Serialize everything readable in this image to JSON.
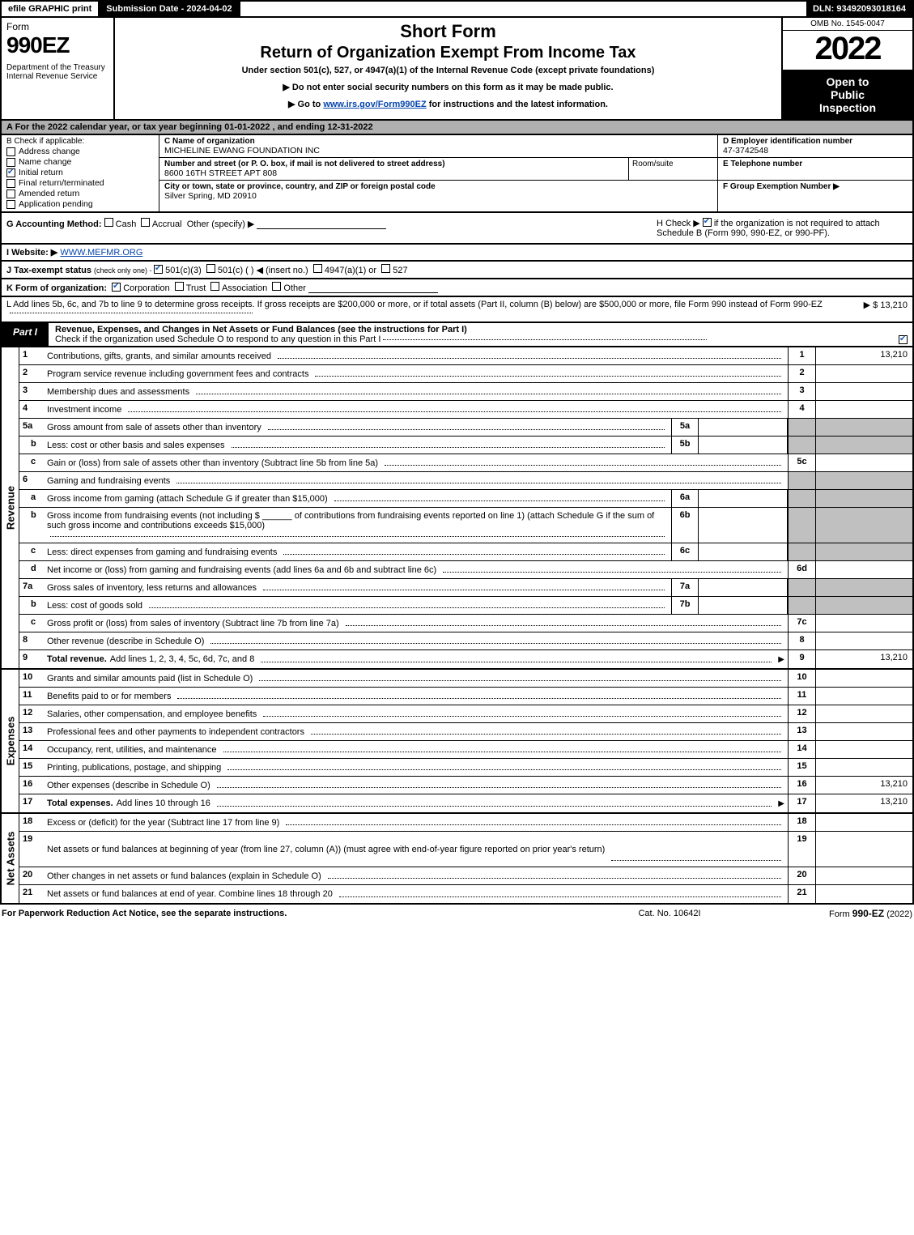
{
  "top_bar": {
    "efile": "efile GRAPHIC print",
    "submission": "Submission Date - 2024-04-02",
    "dln": "DLN: 93492093018164"
  },
  "header": {
    "form_word": "Form",
    "form_num": "990EZ",
    "dept": "Department of the Treasury\nInternal Revenue Service",
    "short_form": "Short Form",
    "return_title": "Return of Organization Exempt From Income Tax",
    "subtitle": "Under section 501(c), 527, or 4947(a)(1) of the Internal Revenue Code (except private foundations)",
    "instr1": "▶ Do not enter social security numbers on this form as it may be made public.",
    "instr2_pre": "▶ Go to ",
    "instr2_link": "www.irs.gov/Form990EZ",
    "instr2_post": " for instructions and the latest information.",
    "omb": "OMB No. 1545-0047",
    "year": "2022",
    "open1": "Open to",
    "open2": "Public",
    "open3": "Inspection"
  },
  "section_a": "A  For the 2022 calendar year, or tax year beginning 01-01-2022 , and ending 12-31-2022",
  "b": {
    "label": "B  Check if applicable:",
    "items": [
      {
        "label": "Address change",
        "checked": false
      },
      {
        "label": "Name change",
        "checked": false
      },
      {
        "label": "Initial return",
        "checked": true
      },
      {
        "label": "Final return/terminated",
        "checked": false
      },
      {
        "label": "Amended return",
        "checked": false
      },
      {
        "label": "Application pending",
        "checked": false
      }
    ]
  },
  "c": {
    "name_label": "C Name of organization",
    "name": "MICHELINE EWANG FOUNDATION INC",
    "street_label": "Number and street (or P. O. box, if mail is not delivered to street address)",
    "street": "8600 16TH STREET APT 808",
    "room_label": "Room/suite",
    "city_label": "City or town, state or province, country, and ZIP or foreign postal code",
    "city": "Silver Spring, MD  20910"
  },
  "d": {
    "label": "D Employer identification number",
    "value": "47-3742548",
    "e_label": "E Telephone number",
    "f_label": "F Group Exemption Number   ▶"
  },
  "g": {
    "label": "G Accounting Method:",
    "cash": "Cash",
    "accrual": "Accrual",
    "other": "Other (specify) ▶"
  },
  "h": {
    "text_pre": "H  Check ▶ ",
    "text_post": " if the organization is not required to attach Schedule B (Form 990, 990-EZ, or 990-PF).",
    "checked": true
  },
  "i": {
    "label": "I Website: ▶",
    "value": "WWW.MEFMR.ORG"
  },
  "j": {
    "label": "J Tax-exempt status",
    "note": "(check only one) - ",
    "opt1": "501(c)(3)",
    "opt2": "501(c) (    ) ◀ (insert no.)",
    "opt3": "4947(a)(1) or",
    "opt4": "527",
    "checked_501c3": true
  },
  "k": {
    "label": "K Form of organization:",
    "opts": [
      "Corporation",
      "Trust",
      "Association",
      "Other"
    ],
    "checked_corp": true
  },
  "l": {
    "text": "L Add lines 5b, 6c, and 7b to line 9 to determine gross receipts. If gross receipts are $200,000 or more, or if total assets (Part II, column (B) below) are $500,000 or more, file Form 990 instead of Form 990-EZ",
    "amount": "▶ $ 13,210"
  },
  "part1": {
    "label": "Part I",
    "title": "Revenue, Expenses, and Changes in Net Assets or Fund Balances (see the instructions for Part I)",
    "sub": "Check if the organization used Schedule O to respond to any question in this Part I",
    "checked": true
  },
  "revenue_label": "Revenue",
  "lines_rev": [
    {
      "num": "1",
      "desc": "Contributions, gifts, grants, and similar amounts received",
      "ref": "1",
      "amt": "13,210"
    },
    {
      "num": "2",
      "desc": "Program service revenue including government fees and contracts",
      "ref": "2",
      "amt": ""
    },
    {
      "num": "3",
      "desc": "Membership dues and assessments",
      "ref": "3",
      "amt": ""
    },
    {
      "num": "4",
      "desc": "Investment income",
      "ref": "4",
      "amt": ""
    },
    {
      "num": "5a",
      "desc": "Gross amount from sale of assets other than inventory",
      "inner_ref": "5a",
      "shade_right": true
    },
    {
      "num": "b",
      "sub": true,
      "desc": "Less: cost or other basis and sales expenses",
      "inner_ref": "5b",
      "shade_right": true
    },
    {
      "num": "c",
      "sub": true,
      "desc": "Gain or (loss) from sale of assets other than inventory (Subtract line 5b from line 5a)",
      "ref": "5c",
      "amt": ""
    },
    {
      "num": "6",
      "desc": "Gaming and fundraising events",
      "no_ref": true,
      "shade_right": true
    },
    {
      "num": "a",
      "sub": true,
      "desc": "Gross income from gaming (attach Schedule G if greater than $15,000)",
      "inner_ref": "6a",
      "shade_right": true
    },
    {
      "num": "b",
      "sub": true,
      "desc_html": "Gross income from fundraising events (not including $ ______ of contributions from fundraising events reported on line 1) (attach Schedule G if the sum of such gross income and contributions exceeds $15,000)",
      "inner_ref": "6b",
      "shade_right": true,
      "tall": true
    },
    {
      "num": "c",
      "sub": true,
      "desc": "Less: direct expenses from gaming and fundraising events",
      "inner_ref": "6c",
      "shade_right": true
    },
    {
      "num": "d",
      "sub": true,
      "desc": "Net income or (loss) from gaming and fundraising events (add lines 6a and 6b and subtract line 6c)",
      "ref": "6d",
      "amt": ""
    },
    {
      "num": "7a",
      "desc": "Gross sales of inventory, less returns and allowances",
      "inner_ref": "7a",
      "shade_right": true
    },
    {
      "num": "b",
      "sub": true,
      "desc": "Less: cost of goods sold",
      "inner_ref": "7b",
      "shade_right": true
    },
    {
      "num": "c",
      "sub": true,
      "desc": "Gross profit or (loss) from sales of inventory (Subtract line 7b from line 7a)",
      "ref": "7c",
      "amt": ""
    },
    {
      "num": "8",
      "desc": "Other revenue (describe in Schedule O)",
      "ref": "8",
      "amt": ""
    },
    {
      "num": "9",
      "desc_bold": "Total revenue.",
      "desc_rest": " Add lines 1, 2, 3, 4, 5c, 6d, 7c, and 8",
      "arrow": true,
      "ref": "9",
      "amt": "13,210"
    }
  ],
  "expenses_label": "Expenses",
  "lines_exp": [
    {
      "num": "10",
      "desc": "Grants and similar amounts paid (list in Schedule O)",
      "ref": "10",
      "amt": ""
    },
    {
      "num": "11",
      "desc": "Benefits paid to or for members",
      "ref": "11",
      "amt": ""
    },
    {
      "num": "12",
      "desc": "Salaries, other compensation, and employee benefits",
      "ref": "12",
      "amt": ""
    },
    {
      "num": "13",
      "desc": "Professional fees and other payments to independent contractors",
      "ref": "13",
      "amt": ""
    },
    {
      "num": "14",
      "desc": "Occupancy, rent, utilities, and maintenance",
      "ref": "14",
      "amt": ""
    },
    {
      "num": "15",
      "desc": "Printing, publications, postage, and shipping",
      "ref": "15",
      "amt": ""
    },
    {
      "num": "16",
      "desc": "Other expenses (describe in Schedule O)",
      "ref": "16",
      "amt": "13,210"
    },
    {
      "num": "17",
      "desc_bold": "Total expenses.",
      "desc_rest": " Add lines 10 through 16",
      "arrow": true,
      "ref": "17",
      "amt": "13,210"
    }
  ],
  "net_label": "Net Assets",
  "lines_net": [
    {
      "num": "18",
      "desc": "Excess or (deficit) for the year (Subtract line 17 from line 9)",
      "ref": "18",
      "amt": ""
    },
    {
      "num": "19",
      "desc": "Net assets or fund balances at beginning of year (from line 27, column (A)) (must agree with end-of-year figure reported on prior year's return)",
      "ref": "19",
      "amt": "",
      "tall": true,
      "shade_right_partial": true
    },
    {
      "num": "20",
      "desc": "Other changes in net assets or fund balances (explain in Schedule O)",
      "ref": "20",
      "amt": ""
    },
    {
      "num": "21",
      "desc": "Net assets or fund balances at end of year. Combine lines 18 through 20",
      "ref": "21",
      "amt": ""
    }
  ],
  "footer": {
    "left": "For Paperwork Reduction Act Notice, see the separate instructions.",
    "mid": "Cat. No. 10642I",
    "right_pre": "Form ",
    "right_bold": "990-EZ",
    "right_post": " (2022)"
  }
}
